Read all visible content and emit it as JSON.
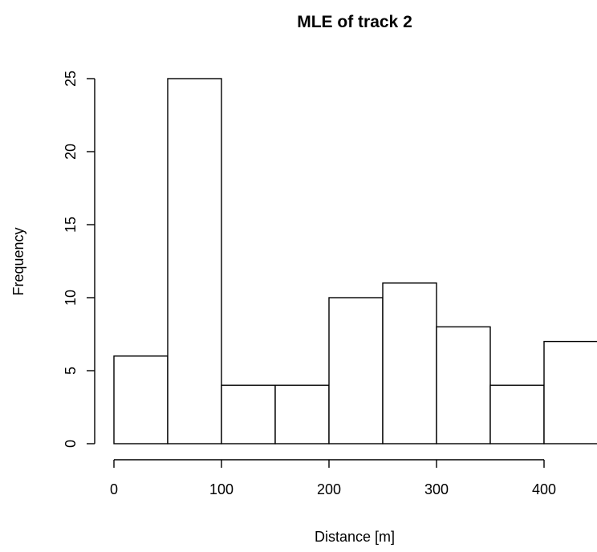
{
  "chart_data": {
    "type": "bar",
    "title": "MLE of track 2",
    "xlabel": "Distance [m]",
    "ylabel": "Frequency",
    "bins": [
      {
        "from": 0,
        "to": 50,
        "count": 6
      },
      {
        "from": 50,
        "to": 100,
        "count": 25
      },
      {
        "from": 100,
        "to": 150,
        "count": 4
      },
      {
        "from": 150,
        "to": 200,
        "count": 4
      },
      {
        "from": 200,
        "to": 250,
        "count": 10
      },
      {
        "from": 250,
        "to": 300,
        "count": 11
      },
      {
        "from": 300,
        "to": 350,
        "count": 8
      },
      {
        "from": 350,
        "to": 400,
        "count": 4
      },
      {
        "from": 400,
        "to": 450,
        "count": 7
      }
    ],
    "xlim": [
      0,
      450
    ],
    "ylim": [
      0,
      25
    ],
    "xticks": [
      0,
      100,
      200,
      300,
      400
    ],
    "yticks": [
      0,
      5,
      10,
      15,
      20,
      25
    ],
    "grid": false,
    "legend": "none",
    "colors": {
      "bar_fill": "#ffffff",
      "bar_stroke": "#000000"
    }
  }
}
